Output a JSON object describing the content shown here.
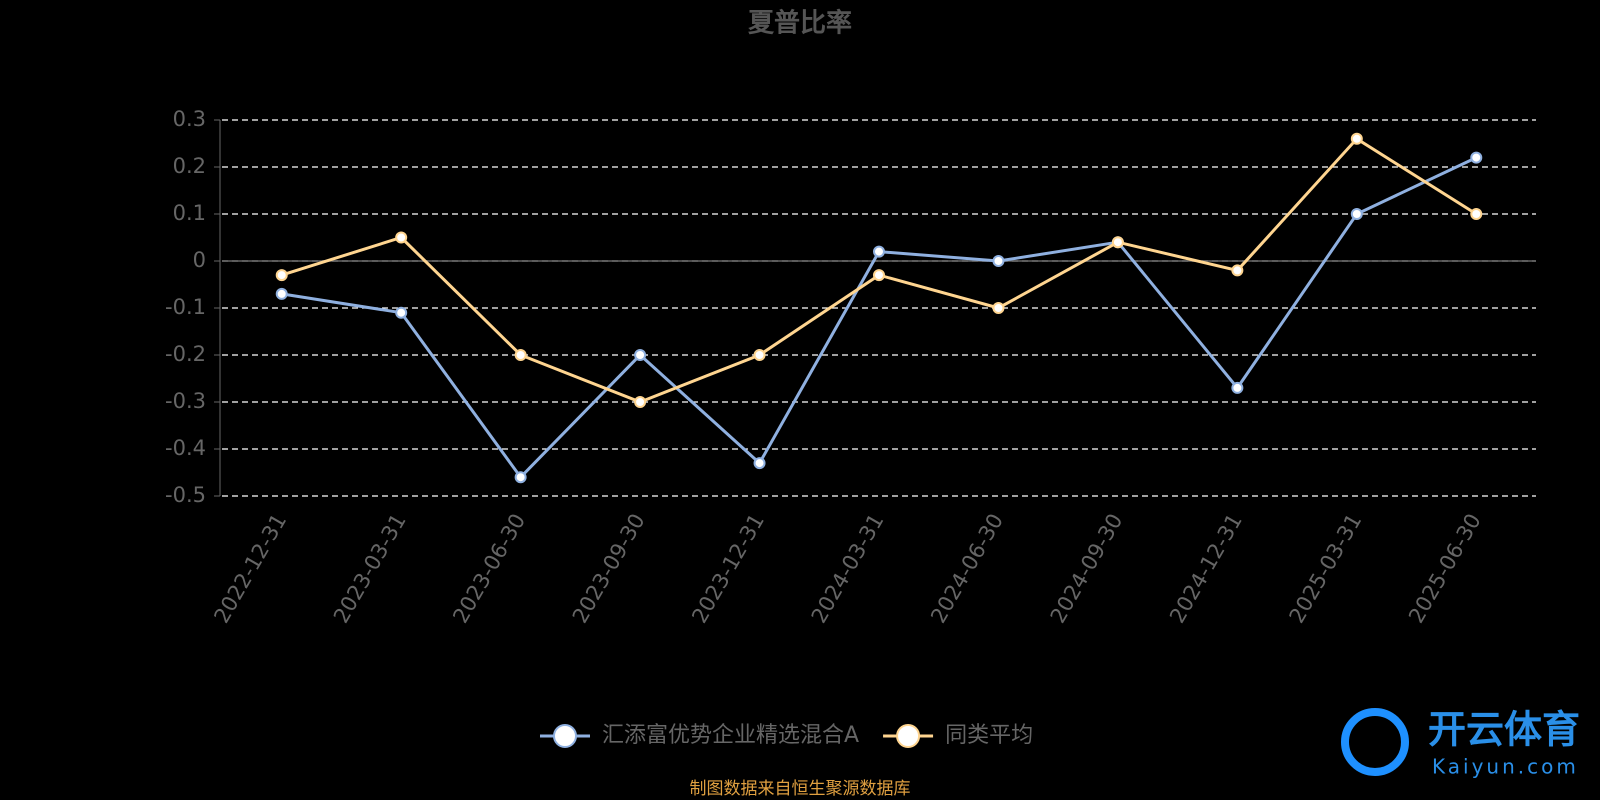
{
  "chart_data": {
    "type": "line",
    "title": "夏普比率",
    "categories": [
      "2022-12-31",
      "2023-03-31",
      "2023-06-30",
      "2023-09-30",
      "2023-12-31",
      "2024-03-31",
      "2024-06-30",
      "2024-09-30",
      "2024-12-31",
      "2025-03-31",
      "2025-06-30"
    ],
    "series": [
      {
        "name": "汇添富优势企业精选混合A",
        "color": "#8fb0e0",
        "values": [
          -0.07,
          -0.11,
          -0.46,
          -0.2,
          -0.43,
          0.02,
          0.0,
          0.04,
          -0.27,
          0.1,
          0.22
        ]
      },
      {
        "name": "同类平均",
        "color": "#ffd590",
        "values": [
          -0.03,
          0.05,
          -0.2,
          -0.3,
          -0.2,
          -0.03,
          -0.1,
          0.04,
          -0.02,
          0.26,
          0.1
        ]
      }
    ],
    "ylim": [
      -0.5,
      0.3
    ],
    "yticks": [
      0.3,
      0.2,
      0.1,
      0,
      -0.1,
      -0.2,
      -0.3,
      -0.4,
      -0.5
    ],
    "grid": true,
    "legend": "bottom",
    "source": "制图数据来自恒生聚源数据库"
  },
  "watermark": {
    "name": "开云体育",
    "url": "Kaiyun.com"
  }
}
